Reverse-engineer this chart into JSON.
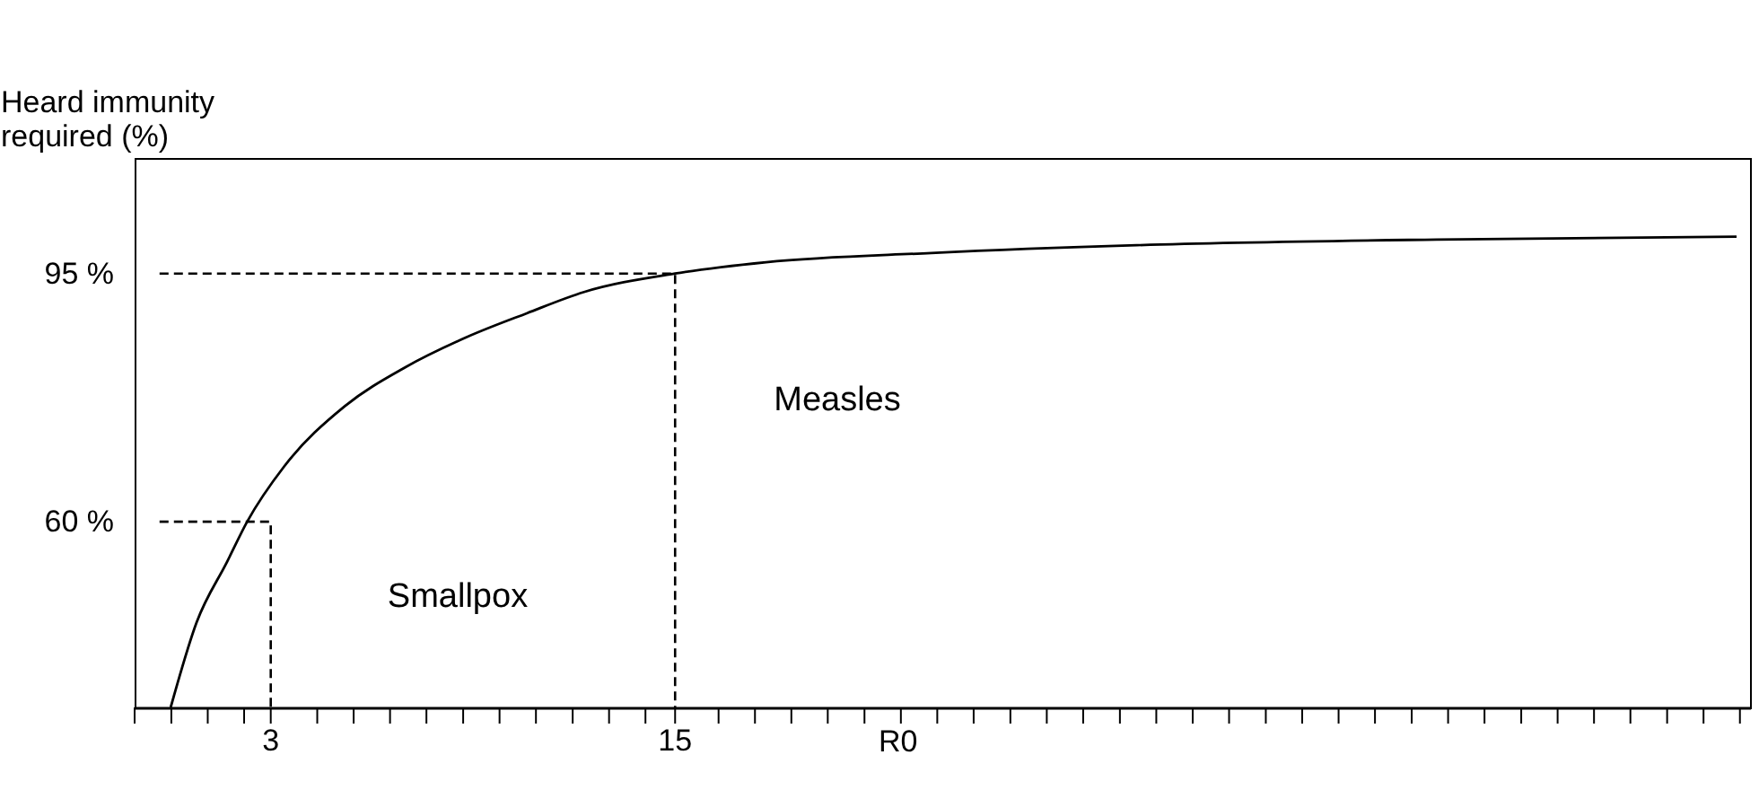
{
  "chart_data": {
    "type": "line",
    "ylabel": "Heard immunity required (%)",
    "xlabel": "R0",
    "xlim": [
      -1.04,
      46.9
    ],
    "ylim": [
      33.8,
      111.3
    ],
    "xticks": [
      {
        "value": -1.04,
        "label": null
      },
      {
        "value": 0.05,
        "label": null
      },
      {
        "value": 1.13,
        "label": null
      },
      {
        "value": 2.21,
        "label": null
      },
      {
        "value": 3,
        "label": "3"
      },
      {
        "value": 4.38,
        "label": null
      },
      {
        "value": 5.46,
        "label": null
      },
      {
        "value": 6.54,
        "label": null
      },
      {
        "value": 7.62,
        "label": null
      },
      {
        "value": 8.71,
        "label": null
      },
      {
        "value": 9.79,
        "label": null
      },
      {
        "value": 10.87,
        "label": null
      },
      {
        "value": 11.96,
        "label": null
      },
      {
        "value": 13.04,
        "label": null
      },
      {
        "value": 14.12,
        "label": null
      },
      {
        "value": 15,
        "label": "15"
      },
      {
        "value": 16.29,
        "label": null
      },
      {
        "value": 17.37,
        "label": null
      },
      {
        "value": 18.45,
        "label": null
      },
      {
        "value": 19.53,
        "label": null
      },
      {
        "value": 20.62,
        "label": null
      },
      {
        "value": 21.7,
        "label": null
      },
      {
        "value": 22.78,
        "label": null
      },
      {
        "value": 23.86,
        "label": null
      },
      {
        "value": 24.95,
        "label": null
      },
      {
        "value": 26.03,
        "label": null
      },
      {
        "value": 27.11,
        "label": null
      },
      {
        "value": 28.2,
        "label": null
      },
      {
        "value": 29.28,
        "label": null
      },
      {
        "value": 30.36,
        "label": null
      },
      {
        "value": 31.44,
        "label": null
      },
      {
        "value": 32.53,
        "label": null
      },
      {
        "value": 33.61,
        "label": null
      },
      {
        "value": 34.69,
        "label": null
      },
      {
        "value": 35.77,
        "label": null
      },
      {
        "value": 36.86,
        "label": null
      },
      {
        "value": 37.94,
        "label": null
      },
      {
        "value": 39.02,
        "label": null
      },
      {
        "value": 40.11,
        "label": null
      },
      {
        "value": 41.19,
        "label": null
      },
      {
        "value": 42.27,
        "label": null
      },
      {
        "value": 43.35,
        "label": null
      },
      {
        "value": 44.44,
        "label": null
      },
      {
        "value": 45.52,
        "label": null
      },
      {
        "value": 46.6,
        "label": null
      }
    ],
    "yticks": [
      {
        "value": 60,
        "label": "60 %"
      },
      {
        "value": 95,
        "label": "95 %"
      }
    ],
    "grid": false,
    "marker": "none",
    "series": [
      {
        "color": "#000000",
        "line_style": "solid",
        "x": [
          0.03,
          0.8,
          1.7,
          2.3,
          3.4,
          5.2,
          7.0,
          8.8,
          10.6,
          12.3,
          15,
          17.7,
          22.6,
          28.7,
          37.6,
          46.5
        ],
        "values": [
          33.8,
          45.8,
          54.3,
          60,
          67.8,
          76.3,
          81.8,
          86,
          89.4,
          92.4,
          95,
          96.6,
          97.9,
          99,
          99.8,
          100.2
        ]
      },
      {
        "color": "#000000",
        "line_style": "dashed",
        "x": [
          -0.3,
          15,
          15
        ],
        "values": [
          95,
          95,
          33.8
        ]
      },
      {
        "color": "#000000",
        "line_style": "dashed",
        "x": [
          -0.3,
          3,
          3
        ],
        "values": [
          60,
          60,
          33.8
        ]
      }
    ],
    "annotations": [
      "Smallpox",
      "Measles"
    ]
  }
}
